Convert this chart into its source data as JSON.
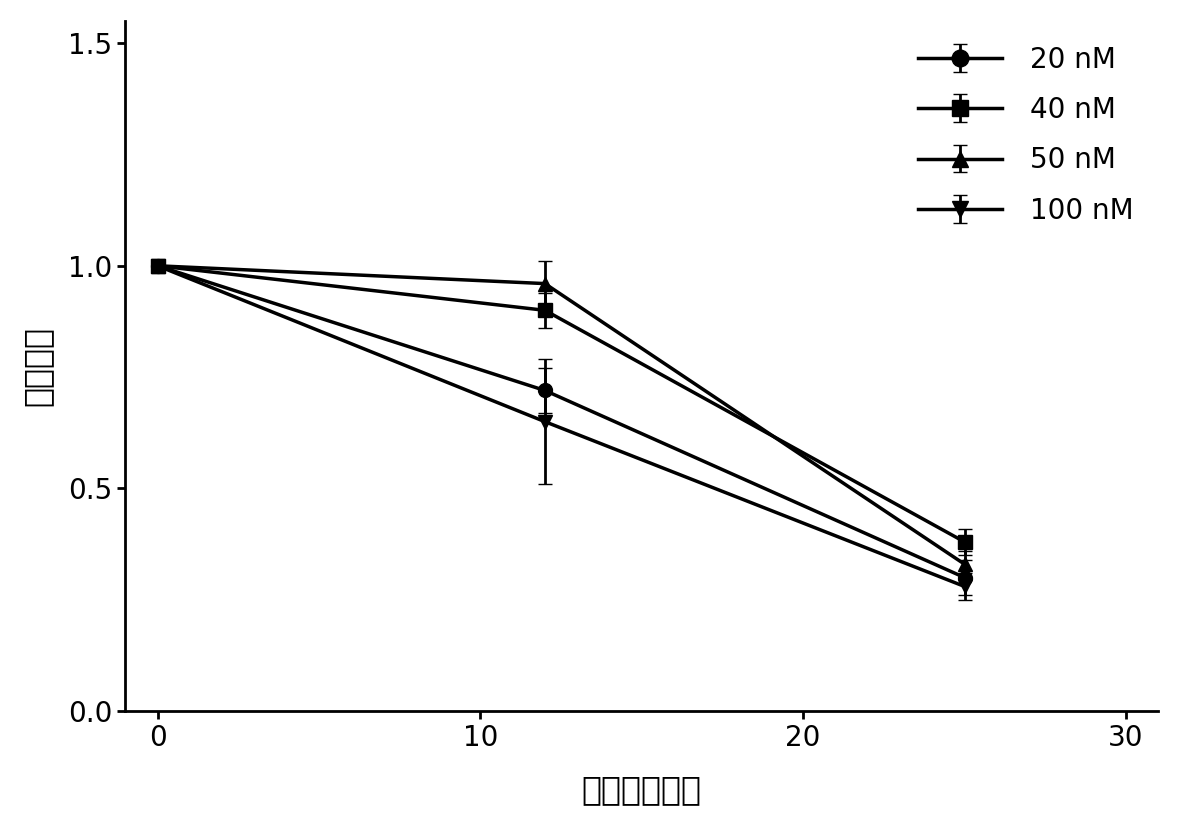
{
  "x": [
    0,
    12,
    25
  ],
  "series": [
    {
      "label": "20 nM",
      "y": [
        1.0,
        0.72,
        0.3
      ],
      "yerr": [
        0.0,
        0.05,
        0.04
      ],
      "marker": "o"
    },
    {
      "label": "40 nM",
      "y": [
        1.0,
        0.9,
        0.38
      ],
      "yerr": [
        0.0,
        0.04,
        0.03
      ],
      "marker": "s"
    },
    {
      "label": "50 nM",
      "y": [
        1.0,
        0.96,
        0.33
      ],
      "yerr": [
        0.0,
        0.05,
        0.03
      ],
      "marker": "^"
    },
    {
      "label": "100 nM",
      "y": [
        1.0,
        0.65,
        0.28
      ],
      "yerr": [
        0.0,
        0.14,
        0.03
      ],
      "marker": "v"
    }
  ],
  "xlabel": "时间（小时）",
  "ylabel": "细胞活性",
  "xlim": [
    -1,
    31
  ],
  "ylim": [
    0.0,
    1.55
  ],
  "yticks": [
    0.0,
    0.5,
    1.0,
    1.5
  ],
  "xticks": [
    0,
    10,
    20,
    30
  ],
  "linewidth": 2.5,
  "markersize": 10,
  "capsize": 5,
  "elinewidth": 2.0,
  "background_color": "#ffffff",
  "color": "#000000",
  "legend_fontsize": 20,
  "axis_label_fontsize": 24,
  "tick_fontsize": 20
}
